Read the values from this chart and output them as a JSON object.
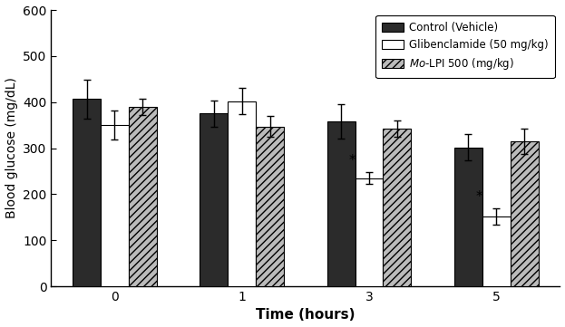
{
  "time_points": [
    0,
    1,
    3,
    5
  ],
  "groups": [
    "Control (Vehicle)",
    "Glibenclamide (50 mg/kg)",
    "Mo-LPI 500 (mg/kg)"
  ],
  "means": {
    "Control (Vehicle)": [
      407,
      375,
      358,
      302
    ],
    "Glibenclamide (50 mg/kg)": [
      350,
      402,
      235,
      152
    ],
    "Mo-LPI 500 (mg/kg)": [
      390,
      347,
      342,
      315
    ]
  },
  "errors": {
    "Control (Vehicle)": [
      42,
      28,
      38,
      28
    ],
    "Glibenclamide (50 mg/kg)": [
      32,
      28,
      12,
      18
    ],
    "Mo-LPI 500 (mg/kg)": [
      18,
      22,
      18,
      28
    ]
  },
  "significance": {
    "Glibenclamide (50 mg/kg)": [
      false,
      false,
      true,
      true
    ]
  },
  "bar_colors": {
    "Control (Vehicle)": "#2b2b2b",
    "Glibenclamide (50 mg/kg)": "#ffffff",
    "Mo-LPI 500 (mg/kg)": "#bbbbbb"
  },
  "bar_edgecolors": {
    "Control (Vehicle)": "#000000",
    "Glibenclamide (50 mg/kg)": "#000000",
    "Mo-LPI 500 (mg/kg)": "#000000"
  },
  "hatch": {
    "Control (Vehicle)": "",
    "Glibenclamide (50 mg/kg)": "",
    "Mo-LPI 500 (mg/kg)": "////"
  },
  "ylabel": "Blood glucose (mg/dL)",
  "xlabel": "Time (hours)",
  "ylim": [
    0,
    600
  ],
  "yticks": [
    0,
    100,
    200,
    300,
    400,
    500,
    600
  ],
  "bar_width": 0.22,
  "figsize": [
    6.23,
    3.61
  ],
  "dpi": 100
}
